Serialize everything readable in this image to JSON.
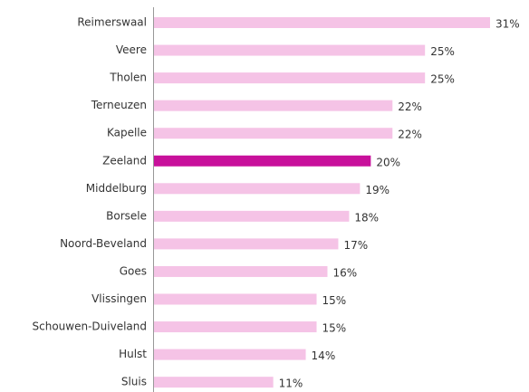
{
  "chart_data": {
    "type": "barh",
    "categories": [
      "Reimerswaal",
      "Veere",
      "Tholen",
      "Terneuzen",
      "Kapelle",
      "Zeeland",
      "Middelburg",
      "Borsele",
      "Noord-Beveland",
      "Goes",
      "Vlissingen",
      "Schouwen-Duiveland",
      "Hulst",
      "Sluis"
    ],
    "values": [
      31,
      25,
      25,
      22,
      22,
      20,
      19,
      18,
      17,
      16,
      15,
      15,
      14,
      11
    ],
    "value_labels": [
      "31%",
      "25%",
      "25%",
      "22%",
      "22%",
      "20%",
      "19%",
      "18%",
      "17%",
      "16%",
      "15%",
      "15%",
      "14%",
      "11%"
    ],
    "colors": [
      "#f5c3e6",
      "#f5c3e6",
      "#f5c3e6",
      "#f5c3e6",
      "#f5c3e6",
      "#c8109b",
      "#f5c3e6",
      "#f5c3e6",
      "#f5c3e6",
      "#f5c3e6",
      "#f5c3e6",
      "#f5c3e6",
      "#f5c3e6",
      "#f5c3e6"
    ]
  }
}
